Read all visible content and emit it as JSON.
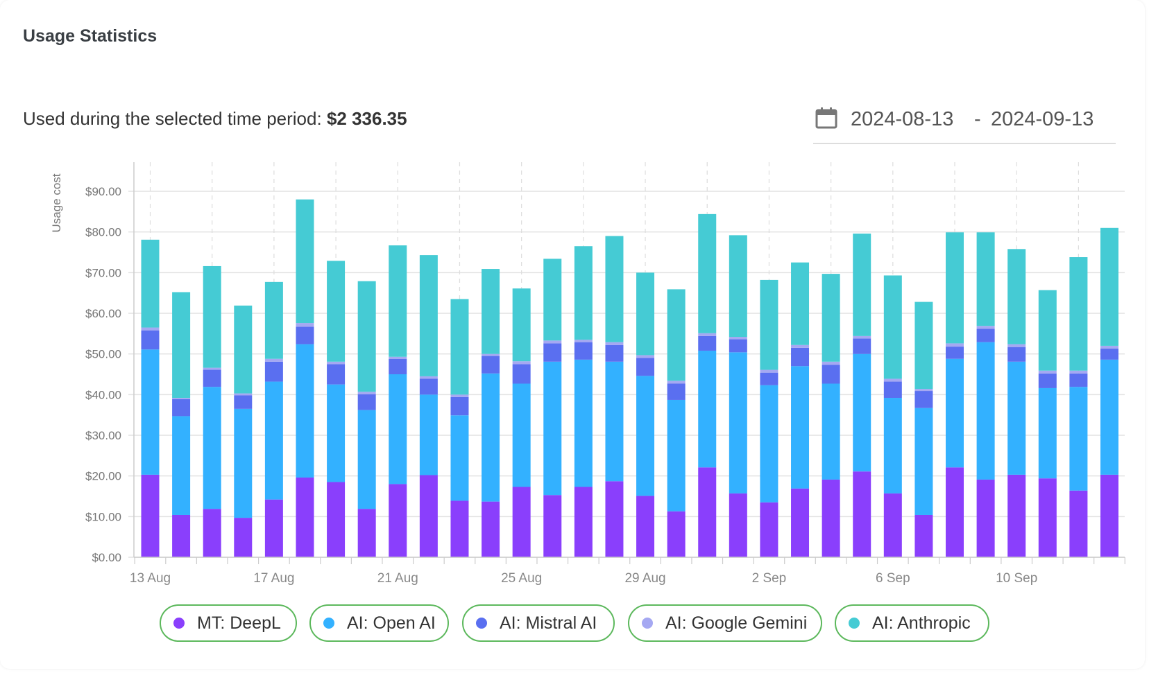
{
  "header": {
    "title": "Usage Statistics"
  },
  "summary": {
    "label": "Used during the selected time period:",
    "amount": "$2 336.35"
  },
  "date_range": {
    "icon": "calendar-icon",
    "start": "2024-08-13",
    "separator": "-",
    "end": "2024-09-13"
  },
  "chart_data": {
    "type": "bar",
    "stacked": true,
    "ylabel": "Usage cost",
    "xlabel": "",
    "ylim": [
      0,
      97
    ],
    "y_ticks": [
      0,
      10,
      20,
      30,
      40,
      50,
      60,
      70,
      80,
      90
    ],
    "y_tick_labels": [
      "$0.00",
      "$10.00",
      "$20.00",
      "$30.00",
      "$40.00",
      "$50.00",
      "$60.00",
      "$70.00",
      "$80.00",
      "$90.00"
    ],
    "grid": true,
    "legend_position": "bottom",
    "categories": [
      "13 Aug",
      "14 Aug",
      "15 Aug",
      "16 Aug",
      "17 Aug",
      "18 Aug",
      "19 Aug",
      "20 Aug",
      "21 Aug",
      "22 Aug",
      "23 Aug",
      "24 Aug",
      "25 Aug",
      "26 Aug",
      "27 Aug",
      "28 Aug",
      "29 Aug",
      "30 Aug",
      "31 Aug",
      "1 Sep",
      "2 Sep",
      "3 Sep",
      "4 Sep",
      "5 Sep",
      "6 Sep",
      "7 Sep",
      "8 Sep",
      "9 Sep",
      "10 Sep",
      "11 Sep",
      "12 Sep",
      "13 Sep"
    ],
    "x_tick_labels": [
      "13 Aug",
      "17 Aug",
      "21 Aug",
      "25 Aug",
      "29 Aug",
      "2 Sep",
      "6 Sep",
      "10 Sep"
    ],
    "series": [
      {
        "name": "MT: DeepL",
        "color": "#8a3ffc",
        "values": [
          20.3,
          10.4,
          11.9,
          9.7,
          14.2,
          19.6,
          18.5,
          11.9,
          18.0,
          20.2,
          13.9,
          13.7,
          17.3,
          15.3,
          17.3,
          18.7,
          15.1,
          11.3,
          22.1,
          15.7,
          13.5,
          16.9,
          19.1,
          21.1,
          15.7,
          10.4,
          22.1,
          19.1,
          20.3,
          19.4,
          16.4,
          20.3
        ]
      },
      {
        "name": "AI: Open AI",
        "color": "#33b1ff",
        "values": [
          30.8,
          24.3,
          30.0,
          26.8,
          29.0,
          32.8,
          24.0,
          24.3,
          27.0,
          19.8,
          21.0,
          31.5,
          25.4,
          32.8,
          31.3,
          29.4,
          29.5,
          27.4,
          28.7,
          34.7,
          28.8,
          30.1,
          23.6,
          28.9,
          23.5,
          26.3,
          26.7,
          33.8,
          27.8,
          22.2,
          25.5,
          28.3
        ]
      },
      {
        "name": "AI: Mistral AI",
        "color": "#5a6ff0",
        "values": [
          4.7,
          4.2,
          4.2,
          3.3,
          4.9,
          4.3,
          5.0,
          3.9,
          3.8,
          3.9,
          4.5,
          4.3,
          4.8,
          4.5,
          4.3,
          4.1,
          4.4,
          4.0,
          3.6,
          3.2,
          3.1,
          4.5,
          4.6,
          3.8,
          4.0,
          4.2,
          3.0,
          3.3,
          3.6,
          3.6,
          3.3,
          2.7
        ]
      },
      {
        "name": "AI: Google Gemini",
        "color": "#a5a8f2",
        "values": [
          0.7,
          0.3,
          0.5,
          0.5,
          0.7,
          0.9,
          0.6,
          0.6,
          0.5,
          0.6,
          0.6,
          0.5,
          0.7,
          0.7,
          0.6,
          0.7,
          0.7,
          0.7,
          0.7,
          0.6,
          0.7,
          0.7,
          0.8,
          0.6,
          0.7,
          0.5,
          0.8,
          0.7,
          0.7,
          0.7,
          0.7,
          0.7
        ]
      },
      {
        "name": "AI: Anthropic",
        "color": "#45cbd4",
        "values": [
          21.6,
          26.0,
          25.0,
          21.6,
          18.9,
          30.4,
          24.8,
          27.2,
          27.4,
          29.8,
          23.5,
          20.9,
          17.9,
          20.1,
          23.0,
          26.1,
          20.3,
          22.5,
          29.3,
          25.0,
          22.1,
          20.3,
          21.6,
          25.2,
          25.4,
          21.4,
          27.3,
          23.0,
          23.4,
          19.8,
          27.9,
          29.0
        ]
      }
    ]
  },
  "legend_border_color": "#5cb85c"
}
